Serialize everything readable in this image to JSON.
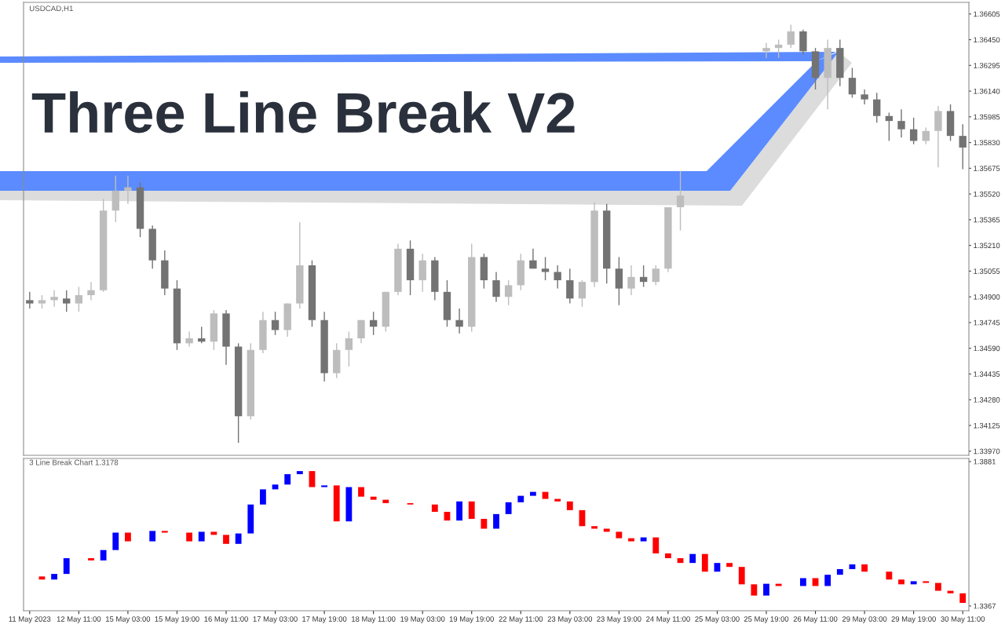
{
  "chart_data": [
    {
      "type": "candlestick",
      "title": "USDCAD,H1",
      "annotations": [
        "Three Line Break V2"
      ],
      "categories": [
        null,
        null,
        null,
        null,
        null,
        null,
        null,
        null,
        null,
        null,
        null,
        null,
        null,
        null,
        null,
        null,
        null,
        null,
        null,
        null,
        null,
        null,
        null,
        null,
        null,
        null,
        null,
        null,
        null,
        null,
        null,
        null,
        null,
        null,
        null,
        null,
        null,
        null,
        null,
        null,
        null,
        null,
        null,
        null,
        null,
        null,
        null,
        null,
        null,
        null,
        null,
        null,
        null,
        null,
        null,
        null,
        null,
        null,
        null,
        null,
        null,
        null,
        null,
        null,
        null,
        null,
        null,
        null,
        null,
        null,
        null,
        null,
        null,
        null,
        null,
        null,
        null
      ],
      "ohlc": [
        [
          1.3488,
          1.3493,
          1.3483,
          1.3486
        ],
        [
          1.3486,
          1.3491,
          1.3483,
          1.3488
        ],
        [
          1.3488,
          1.3494,
          1.3484,
          1.349
        ],
        [
          1.3489,
          1.3494,
          1.3481,
          1.3486
        ],
        [
          1.3486,
          1.3496,
          1.3481,
          1.3491
        ],
        [
          1.3491,
          1.3499,
          1.3488,
          1.3494
        ],
        [
          1.3494,
          1.3549,
          1.3493,
          1.3542
        ],
        [
          1.3542,
          1.3563,
          1.3535,
          1.3554
        ],
        [
          1.3554,
          1.3563,
          1.3546,
          1.3556
        ],
        [
          1.3556,
          1.3559,
          1.3526,
          1.3531
        ],
        [
          1.3531,
          1.3533,
          1.3507,
          1.3512
        ],
        [
          1.3512,
          1.3518,
          1.3491,
          1.3495
        ],
        [
          1.3495,
          1.35,
          1.3458,
          1.3462
        ],
        [
          1.3462,
          1.3469,
          1.346,
          1.3465
        ],
        [
          1.3465,
          1.3472,
          1.3462,
          1.3463
        ],
        [
          1.3463,
          1.3482,
          1.3458,
          1.348
        ],
        [
          1.348,
          1.3482,
          1.3449,
          1.346
        ],
        [
          1.346,
          1.3462,
          1.3402,
          1.3418
        ],
        [
          1.3418,
          1.3462,
          1.3416,
          1.3458
        ],
        [
          1.3458,
          1.3481,
          1.3456,
          1.3476
        ],
        [
          1.3476,
          1.3481,
          1.3467,
          1.347
        ],
        [
          1.347,
          1.3486,
          1.3466,
          1.3486
        ],
        [
          1.3486,
          1.3535,
          1.3483,
          1.3509
        ],
        [
          1.3509,
          1.3512,
          1.3472,
          1.3476
        ],
        [
          1.3476,
          1.3481,
          1.3439,
          1.3444
        ],
        [
          1.3444,
          1.3462,
          1.3441,
          1.3458
        ],
        [
          1.3458,
          1.3469,
          1.3448,
          1.3465
        ],
        [
          1.3465,
          1.3476,
          1.3462,
          1.3476
        ],
        [
          1.3476,
          1.3481,
          1.3467,
          1.3472
        ],
        [
          1.3472,
          1.3493,
          1.3469,
          1.3493
        ],
        [
          1.3493,
          1.3522,
          1.3491,
          1.3519
        ],
        [
          1.3519,
          1.3524,
          1.3491,
          1.35
        ],
        [
          1.35,
          1.3516,
          1.3493,
          1.3512
        ],
        [
          1.3512,
          1.3514,
          1.3488,
          1.3493
        ],
        [
          1.3493,
          1.35,
          1.3472,
          1.3476
        ],
        [
          1.3476,
          1.3483,
          1.3468,
          1.3472
        ],
        [
          1.3472,
          1.3522,
          1.3469,
          1.3514
        ],
        [
          1.3514,
          1.3516,
          1.3495,
          1.35
        ],
        [
          1.35,
          1.3505,
          1.3487,
          1.349
        ],
        [
          1.349,
          1.35,
          1.3485,
          1.3497
        ],
        [
          1.3497,
          1.3516,
          1.3494,
          1.3512
        ],
        [
          1.3512,
          1.3519,
          1.3507,
          1.3507
        ],
        [
          1.3507,
          1.3514,
          1.35,
          1.3505
        ],
        [
          1.3505,
          1.3509,
          1.3495,
          1.35
        ],
        [
          1.35,
          1.3507,
          1.3486,
          1.3489
        ],
        [
          1.3489,
          1.35,
          1.3484,
          1.3499
        ],
        [
          1.3499,
          1.3547,
          1.3496,
          1.3542
        ],
        [
          1.3542,
          1.3546,
          1.3498,
          1.3507
        ],
        [
          1.3507,
          1.3514,
          1.3485,
          1.3495
        ],
        [
          1.3495,
          1.3509,
          1.3491,
          1.3502
        ],
        [
          1.3502,
          1.3509,
          1.3496,
          1.3499
        ],
        [
          1.3499,
          1.3509,
          1.3497,
          1.3507
        ],
        [
          1.3507,
          1.3544,
          1.3505,
          1.3544
        ],
        [
          1.3544,
          1.3566,
          1.353,
          1.3551
        ],
        null,
        null,
        null,
        null,
        null,
        null,
        [
          1.3638,
          1.3643,
          1.3634,
          1.364
        ],
        [
          1.364,
          1.3645,
          1.3634,
          1.3642
        ],
        [
          1.3642,
          1.3654,
          1.364,
          1.365
        ],
        [
          1.365,
          1.3651,
          1.3636,
          1.3638
        ],
        [
          1.3638,
          1.364,
          1.3615,
          1.3622
        ],
        [
          1.3622,
          1.3645,
          1.3603,
          1.364
        ],
        [
          1.364,
          1.3645,
          1.3617,
          1.3622
        ],
        [
          1.3622,
          1.3628,
          1.361,
          1.3612
        ],
        [
          1.3612,
          1.3615,
          1.3606,
          1.3609
        ],
        [
          1.3609,
          1.3613,
          1.3595,
          1.3599
        ],
        [
          1.3599,
          1.3601,
          1.3584,
          1.3596
        ],
        [
          1.3596,
          1.3603,
          1.3586,
          1.3591
        ],
        [
          1.3591,
          1.3598,
          1.3582,
          1.3584
        ],
        [
          1.3584,
          1.3592,
          1.3582,
          1.359
        ],
        [
          1.359,
          1.3605,
          1.3568,
          1.3602
        ],
        [
          1.3602,
          1.3606,
          1.3584,
          1.3587
        ],
        [
          1.3587,
          1.3594,
          1.3567,
          1.358
        ]
      ],
      "colors": [
        "#737373",
        "#bdbdbd",
        "#bdbdbd",
        "#737373",
        "#bdbdbd",
        "#bdbdbd",
        "#bdbdbd",
        "#bdbdbd",
        "#bdbdbd",
        "#737373",
        "#737373",
        "#737373",
        "#737373",
        "#bdbdbd",
        "#737373",
        "#bdbdbd",
        "#737373",
        "#737373",
        "#bdbdbd",
        "#bdbdbd",
        "#737373",
        "#bdbdbd",
        "#bdbdbd",
        "#737373",
        "#737373",
        "#bdbdbd",
        "#bdbdbd",
        "#bdbdbd",
        "#737373",
        "#bdbdbd",
        "#bdbdbd",
        "#737373",
        "#bdbdbd",
        "#737373",
        "#737373",
        "#737373",
        "#bdbdbd",
        "#737373",
        "#737373",
        "#bdbdbd",
        "#bdbdbd",
        "#737373",
        "#737373",
        "#737373",
        "#737373",
        "#bdbdbd",
        "#bdbdbd",
        "#737373",
        "#737373",
        "#bdbdbd",
        "#737373",
        "#bdbdbd",
        "#bdbdbd",
        "#bdbdbd",
        null,
        null,
        null,
        null,
        null,
        null,
        "#bdbdbd",
        "#bdbdbd",
        "#bdbdbd",
        "#737373",
        "#737373",
        "#bdbdbd",
        "#737373",
        "#737373",
        "#737373",
        "#737373",
        "#737373",
        "#737373",
        "#737373",
        "#bdbdbd",
        "#bdbdbd",
        "#737373",
        "#737373"
      ],
      "ylim": [
        1.33945,
        1.36675
      ],
      "tick_labels": "y",
      "yticks": [
        {
          "value": 1.36605,
          "label": "1.36605"
        },
        {
          "value": 1.3645,
          "label": "1.36450"
        },
        {
          "value": 1.36295,
          "label": "1.36295"
        },
        {
          "value": 1.3614,
          "label": "1.36140"
        },
        {
          "value": 1.35985,
          "label": "1.35985"
        },
        {
          "value": 1.3583,
          "label": "1.35830"
        },
        {
          "value": 1.35675,
          "label": "1.35675"
        },
        {
          "value": 1.3552,
          "label": "1.35520"
        },
        {
          "value": 1.35365,
          "label": "1.35365"
        },
        {
          "value": 1.3521,
          "label": "1.35210"
        },
        {
          "value": 1.35055,
          "label": "1.35055"
        },
        {
          "value": 1.349,
          "label": "1.34900"
        },
        {
          "value": 1.34745,
          "label": "1.34745"
        },
        {
          "value": 1.3459,
          "label": "1.34590"
        },
        {
          "value": 1.34435,
          "label": "1.34435"
        },
        {
          "value": 1.3428,
          "label": "1.34280"
        },
        {
          "value": 1.34125,
          "label": "1.34125"
        },
        {
          "value": 1.3397,
          "label": "1.33970"
        }
      ]
    },
    {
      "type": "bar",
      "title": "3 Line Break Chart 1.3178",
      "categories": [
        "11 May 2023",
        null,
        null,
        null,
        "12 May 11:00",
        null,
        null,
        null,
        "15 May 03:00",
        null,
        null,
        null,
        "15 May 19:00",
        null,
        null,
        null,
        "16 May 11:00",
        null,
        null,
        null,
        "17 May 03:00",
        null,
        null,
        null,
        "17 May 19:00",
        null,
        null,
        null,
        "18 May 11:00",
        null,
        null,
        null,
        "19 May 03:00",
        null,
        null,
        null,
        "19 May 19:00",
        null,
        null,
        null,
        "22 May 11:00",
        null,
        null,
        null,
        "23 May 03:00",
        null,
        null,
        null,
        "23 May 19:00",
        null,
        null,
        null,
        "24 May 11:00",
        null,
        null,
        null,
        "25 May 03:00",
        null,
        null,
        null,
        "25 May 19:00",
        null,
        null,
        null,
        "26 May 11:00",
        null,
        null,
        null,
        "29 May 03:00",
        null,
        null,
        null,
        "29 May 19:00",
        null,
        null,
        null,
        "30 May 11:00"
      ],
      "base": [
        null,
        1.3472,
        1.3461,
        1.3481,
        null,
        1.3537,
        1.3529,
        1.3566,
        1.3628,
        null,
        1.3597,
        1.3634,
        null,
        1.3628,
        1.3597,
        1.3631,
        1.362,
        1.3588,
        1.3625,
        1.3728,
        1.3782,
        1.3799,
        1.3836,
        1.3847,
        1.379,
        1.3796,
        1.3668,
        1.379,
        1.3756,
        1.3745,
        null,
        1.3733,
        null,
        1.3728,
        1.3702,
        1.3671,
        1.3739,
        1.3677,
        1.3642,
        1.3694,
        1.3736,
        1.3759,
        1.3773,
        1.3748,
        1.3739,
        1.3708,
        1.3651,
        1.3642,
        1.3631,
        1.3608,
        1.3597,
        1.3611,
        1.3554,
        1.3537,
        1.352,
        1.3552,
        1.3489,
        1.352,
        1.3506,
        1.3444,
        1.3404,
        1.3446,
        null,
        1.3438,
        1.3466,
        1.3438,
        1.3478,
        1.3498,
        1.3515,
        null,
        1.3489,
        1.3461,
        1.3444,
        1.3455,
        1.3449,
        1.3421,
        1.3412
      ],
      "values": [
        null,
        -0.0011,
        0.002,
        0.0056,
        null,
        -0.0008,
        0.0037,
        0.0062,
        -0.0031,
        null,
        0.0037,
        -0.0006,
        null,
        -0.0031,
        0.0034,
        -0.0011,
        -0.0032,
        0.0037,
        0.0103,
        0.0054,
        0.0017,
        0.0037,
        0.0011,
        -0.0057,
        0.0006,
        -0.0128,
        0.0122,
        -0.0034,
        -0.0011,
        -0.0012,
        null,
        -0.0005,
        null,
        -0.0026,
        -0.0031,
        0.0068,
        -0.0062,
        -0.0035,
        0.0052,
        0.0042,
        0.0023,
        0.0014,
        -0.0025,
        -0.0009,
        -0.0031,
        -0.0057,
        -0.0009,
        -0.0011,
        -0.0023,
        -0.0011,
        0.0014,
        -0.0057,
        -0.0017,
        -0.0017,
        0.0032,
        -0.0063,
        0.0031,
        -0.0014,
        -0.0062,
        -0.004,
        0.0042,
        -0.0008,
        null,
        0.0028,
        -0.0028,
        0.004,
        0.002,
        0.0017,
        -0.0026,
        null,
        -0.0028,
        -0.0017,
        0.0011,
        -0.0006,
        -0.0028,
        -0.0009,
        -0.0034
      ],
      "colors": [
        null,
        "#ff0000",
        "#0000ff",
        "#0000ff",
        null,
        "#ff0000",
        "#0000ff",
        "#0000ff",
        "#ff0000",
        null,
        "#0000ff",
        "#ff0000",
        null,
        "#ff0000",
        "#0000ff",
        "#ff0000",
        "#ff0000",
        "#0000ff",
        "#0000ff",
        "#0000ff",
        "#0000ff",
        "#0000ff",
        "#0000ff",
        "#ff0000",
        "#0000ff",
        "#ff0000",
        "#0000ff",
        "#ff0000",
        "#ff0000",
        "#ff0000",
        null,
        "#ff0000",
        null,
        "#ff0000",
        "#ff0000",
        "#0000ff",
        "#ff0000",
        "#ff0000",
        "#0000ff",
        "#0000ff",
        "#0000ff",
        "#0000ff",
        "#ff0000",
        "#ff0000",
        "#ff0000",
        "#ff0000",
        "#ff0000",
        "#ff0000",
        "#ff0000",
        "#ff0000",
        "#0000ff",
        "#ff0000",
        "#ff0000",
        "#ff0000",
        "#0000ff",
        "#ff0000",
        "#0000ff",
        "#ff0000",
        "#ff0000",
        "#ff0000",
        "#0000ff",
        "#ff0000",
        null,
        "#0000ff",
        "#ff0000",
        "#0000ff",
        "#0000ff",
        "#0000ff",
        "#ff0000",
        null,
        "#ff0000",
        "#ff0000",
        "#0000ff",
        "#ff0000",
        "#ff0000",
        "#ff0000",
        "#ff0000"
      ],
      "ylim": [
        1.335,
        1.3892
      ],
      "yticks": [
        1.3881,
        1.3367
      ]
    }
  ]
}
